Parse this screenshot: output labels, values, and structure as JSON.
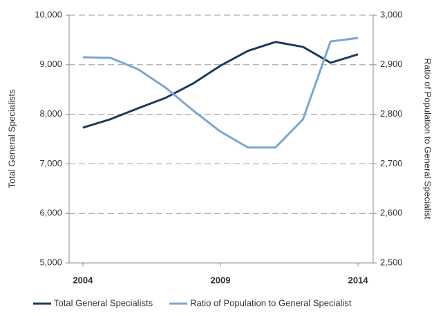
{
  "chart_data": {
    "type": "line",
    "x": [
      2004,
      2005,
      2006,
      2007,
      2008,
      2009,
      2010,
      2011,
      2012,
      2013,
      2014
    ],
    "xlim": [
      2003.5,
      2014.55
    ],
    "xticks": [
      2004,
      2009,
      2014
    ],
    "ylabel": "Total General Specialists",
    "y2label": "Ratio of Population to General Specialist",
    "ylim": [
      5000,
      10000
    ],
    "yticks": [
      {
        "value": 5000,
        "label": "5,000"
      },
      {
        "value": 6000,
        "label": "6,000"
      },
      {
        "value": 7000,
        "label": "7,000"
      },
      {
        "value": 8000,
        "label": "8,000"
      },
      {
        "value": 9000,
        "label": "9,000"
      },
      {
        "value": 10000,
        "label": "10,000"
      }
    ],
    "y2lim": [
      2500,
      3000
    ],
    "y2ticks": [
      {
        "value": 2500,
        "label": "2,500"
      },
      {
        "value": 2600,
        "label": "2,600"
      },
      {
        "value": 2700,
        "label": "2,700"
      },
      {
        "value": 2800,
        "label": "2,800"
      },
      {
        "value": 2900,
        "label": "2,900"
      },
      {
        "value": 3000,
        "label": "3,000"
      }
    ],
    "grid": true,
    "legend": "bottom",
    "series": [
      {
        "name": "Total General Specialists",
        "color": "#1b3a5c",
        "values": [
          7730,
          7900,
          8120,
          8330,
          8620,
          8980,
          9280,
          9460,
          9360,
          9040,
          9210
        ]
      },
      {
        "name": "Ratio of Population to General Specialist",
        "color": "#7aa6d2",
        "axis": "y2",
        "values": [
          2915,
          2914,
          2891,
          2854,
          2808,
          2765,
          2733,
          2733,
          2790,
          2947,
          2954
        ]
      }
    ]
  }
}
